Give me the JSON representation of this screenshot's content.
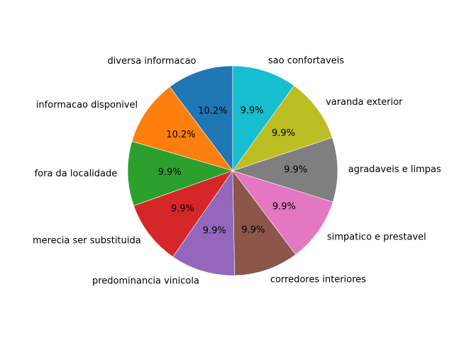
{
  "chart_data": {
    "type": "pie",
    "title": "",
    "start_angle_deg": 90,
    "direction": "counterclockwise",
    "slices": [
      {
        "label": "diversa informacao",
        "value": 10.2,
        "pct_label": "10.2%",
        "color": "#1f77b4"
      },
      {
        "label": "informacao disponivel",
        "value": 10.2,
        "pct_label": "10.2%",
        "color": "#ff7f0e"
      },
      {
        "label": "fora da localidade",
        "value": 9.9,
        "pct_label": "9.9%",
        "color": "#2ca02c"
      },
      {
        "label": "merecia ser substituida",
        "value": 9.9,
        "pct_label": "9.9%",
        "color": "#d62728"
      },
      {
        "label": "predominancia vinicola",
        "value": 9.9,
        "pct_label": "9.9%",
        "color": "#9467bd"
      },
      {
        "label": "corredores interiores",
        "value": 9.9,
        "pct_label": "9.9%",
        "color": "#8c564b"
      },
      {
        "label": "simpatico e prestavel",
        "value": 9.9,
        "pct_label": "9.9%",
        "color": "#e377c2"
      },
      {
        "label": "agradaveis e limpas",
        "value": 9.9,
        "pct_label": "9.9%",
        "color": "#7f7f7f"
      },
      {
        "label": "varanda exterior",
        "value": 9.9,
        "pct_label": "9.9%",
        "color": "#bcbd22"
      },
      {
        "label": "sao confortaveis",
        "value": 9.9,
        "pct_label": "9.9%",
        "color": "#17becf"
      }
    ]
  }
}
